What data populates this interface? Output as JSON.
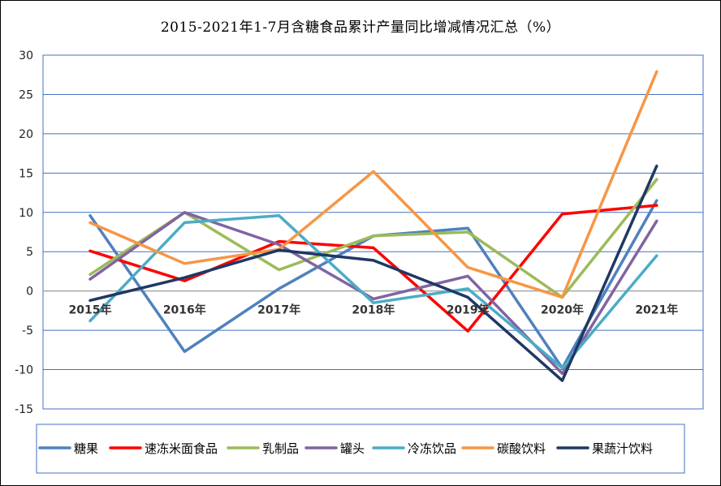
{
  "chart_data": {
    "type": "line",
    "title": "2015-2021年1-7月含糖食品累计产量同比增减情况汇总（%）",
    "categories": [
      "2015年",
      "2016年",
      "2017年",
      "2018年",
      "2019年",
      "2020年",
      "2021年"
    ],
    "ylim": [
      -15,
      30
    ],
    "yticks": [
      30,
      25,
      20,
      15,
      10,
      5,
      0,
      -5,
      -10,
      -15
    ],
    "grid": true,
    "legend_position": "bottom",
    "series": [
      {
        "name": "糖果",
        "color": "#4f81bd",
        "values": [
          9.6,
          -7.7,
          0.3,
          7.0,
          8.0,
          -9.8,
          11.5
        ]
      },
      {
        "name": "速冻米面食品",
        "color": "#ff0000",
        "values": [
          5.1,
          1.3,
          6.3,
          5.5,
          -5.1,
          9.8,
          10.9
        ]
      },
      {
        "name": "乳制品",
        "color": "#9bbb59",
        "values": [
          2.1,
          10.0,
          2.7,
          7.0,
          7.5,
          -0.8,
          14.2
        ]
      },
      {
        "name": "罐头",
        "color": "#8064a2",
        "values": [
          1.5,
          10.0,
          5.9,
          -1.0,
          1.9,
          -10.5,
          8.9
        ]
      },
      {
        "name": "冷冻饮品",
        "color": "#4bacc6",
        "values": [
          -3.8,
          8.7,
          9.6,
          -1.5,
          0.3,
          -9.8,
          4.5
        ]
      },
      {
        "name": "碳酸饮料",
        "color": "#f79646",
        "values": [
          8.7,
          3.5,
          5.3,
          15.2,
          3.0,
          -0.8,
          27.9
        ]
      },
      {
        "name": "果蔬汁饮料",
        "color": "#1f3864",
        "values": [
          -1.2,
          1.7,
          5.2,
          3.9,
          -0.8,
          -11.4,
          15.9
        ]
      }
    ]
  }
}
